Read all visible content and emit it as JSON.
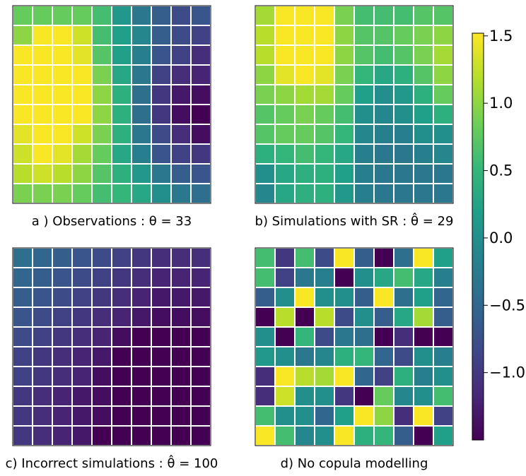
{
  "chart_data": {
    "type": "heatmap",
    "colormap": "viridis",
    "grid": false,
    "colorbar": {
      "range": [
        -1.5,
        1.52
      ],
      "ticks": [
        -1.0,
        -0.5,
        0.0,
        0.5,
        1.0,
        1.5
      ],
      "tick_labels": [
        "−1.0",
        "−0.5",
        "0.0",
        "0.5",
        "1.0",
        "1.5"
      ],
      "placement": "right"
    },
    "panels": [
      {
        "id": "a",
        "caption": "a ) Observations : θ = 33",
        "rows": [
          [
            0.8,
            0.8,
            0.8,
            0.8,
            0.6,
            0.1,
            -0.3,
            -0.6,
            -0.8,
            -0.7
          ],
          [
            1.0,
            1.5,
            1.5,
            1.3,
            0.6,
            0.2,
            -0.1,
            -0.6,
            -0.8,
            -0.9
          ],
          [
            1.5,
            1.5,
            1.5,
            1.4,
            0.7,
            0.2,
            -0.2,
            -0.7,
            -0.9,
            -1.1
          ],
          [
            1.5,
            1.5,
            1.5,
            1.5,
            0.9,
            0.3,
            -0.3,
            -0.9,
            -1.1,
            -1.2
          ],
          [
            1.5,
            1.5,
            1.5,
            1.5,
            1.0,
            0.4,
            -0.4,
            -1.0,
            -1.3,
            -1.4
          ],
          [
            1.5,
            1.5,
            1.5,
            1.5,
            1.0,
            0.4,
            -0.4,
            -1.0,
            -1.4,
            -1.5
          ],
          [
            1.4,
            1.5,
            1.5,
            1.3,
            0.9,
            0.4,
            -0.3,
            -0.8,
            -1.1,
            -1.4
          ],
          [
            1.3,
            1.5,
            1.4,
            1.1,
            0.8,
            0.3,
            -0.2,
            -0.7,
            -0.9,
            -1.0
          ],
          [
            1.2,
            1.3,
            1.2,
            1.0,
            0.7,
            0.4,
            0.1,
            -0.3,
            -0.6,
            -0.7
          ],
          [
            0.9,
            0.9,
            0.9,
            0.8,
            0.6,
            0.5,
            0.3,
            0.0,
            -0.3,
            -0.4
          ]
        ]
      },
      {
        "id": "b",
        "caption": "b) Simulations with SR : θ̂ = 29",
        "rows": [
          [
            1.1,
            1.5,
            1.5,
            1.5,
            0.9,
            0.6,
            0.6,
            0.6,
            0.7,
            0.7
          ],
          [
            1.2,
            1.5,
            1.5,
            1.5,
            1.0,
            0.7,
            0.7,
            0.8,
            0.9,
            1.0
          ],
          [
            1.2,
            1.5,
            1.5,
            1.5,
            1.0,
            0.7,
            0.6,
            0.7,
            0.9,
            1.1
          ],
          [
            1.0,
            1.4,
            1.5,
            1.4,
            0.9,
            0.5,
            0.3,
            0.4,
            0.7,
            1.0
          ],
          [
            0.9,
            1.0,
            1.1,
            1.1,
            0.8,
            0.2,
            0.0,
            0.1,
            0.4,
            0.8
          ],
          [
            0.7,
            0.8,
            0.9,
            0.8,
            0.6,
            0.0,
            -0.1,
            0.0,
            0.2,
            0.4
          ],
          [
            0.7,
            0.8,
            0.8,
            0.7,
            0.5,
            -0.1,
            -0.2,
            -0.2,
            0.0,
            0.0
          ],
          [
            0.4,
            0.5,
            0.6,
            0.5,
            0.3,
            -0.2,
            -0.3,
            -0.3,
            -0.2,
            -0.1
          ],
          [
            0.0,
            0.3,
            0.4,
            0.4,
            0.2,
            -0.2,
            -0.3,
            -0.3,
            -0.3,
            -0.3
          ],
          [
            -0.1,
            0.3,
            0.4,
            0.4,
            0.1,
            -0.2,
            -0.3,
            -0.3,
            -0.3,
            -0.3
          ]
        ]
      },
      {
        "id": "c",
        "caption": "c) Incorrect simulations : θ̂ = 100",
        "rows": [
          [
            -0.4,
            -0.5,
            -0.6,
            -0.7,
            -0.8,
            -0.9,
            -1.0,
            -1.1,
            -1.1,
            -1.1
          ],
          [
            -0.5,
            -0.6,
            -0.7,
            -0.8,
            -0.9,
            -1.0,
            -1.1,
            -1.2,
            -1.2,
            -1.2
          ],
          [
            -0.6,
            -0.7,
            -0.8,
            -0.9,
            -1.0,
            -1.1,
            -1.2,
            -1.3,
            -1.3,
            -1.3
          ],
          [
            -0.7,
            -0.8,
            -0.9,
            -1.0,
            -1.1,
            -1.2,
            -1.3,
            -1.4,
            -1.4,
            -1.4
          ],
          [
            -0.8,
            -0.9,
            -1.0,
            -1.1,
            -1.2,
            -1.4,
            -1.5,
            -1.5,
            -1.5,
            -1.5
          ],
          [
            -0.9,
            -1.0,
            -1.1,
            -1.2,
            -1.3,
            -1.5,
            -1.5,
            -1.5,
            -1.5,
            -1.5
          ],
          [
            -0.9,
            -1.0,
            -1.1,
            -1.2,
            -1.4,
            -1.5,
            -1.5,
            -1.5,
            -1.5,
            -1.5
          ],
          [
            -1.0,
            -1.1,
            -1.2,
            -1.3,
            -1.4,
            -1.5,
            -1.5,
            -1.5,
            -1.5,
            -1.5
          ],
          [
            -1.0,
            -1.1,
            -1.2,
            -1.3,
            -1.4,
            -1.5,
            -1.5,
            -1.5,
            -1.5,
            -1.5
          ],
          [
            -1.0,
            -1.1,
            -1.2,
            -1.3,
            -1.5,
            -1.5,
            -1.5,
            -1.5,
            -1.5,
            -1.5
          ]
        ]
      },
      {
        "id": "d",
        "caption": "d) No copula modelling",
        "rows": [
          [
            0.6,
            -1.0,
            0.6,
            -0.8,
            1.5,
            -0.6,
            -1.5,
            -0.4,
            1.5,
            0.2
          ],
          [
            0.6,
            -0.9,
            -0.3,
            -0.2,
            -1.5,
            0.0,
            0.3,
            0.6,
            0.3,
            -0.2
          ],
          [
            -0.6,
            0.0,
            1.5,
            0.0,
            0.0,
            -0.6,
            1.5,
            -0.4,
            0.2,
            -0.5
          ],
          [
            -1.5,
            1.2,
            -1.5,
            1.2,
            -0.8,
            0.0,
            -0.6,
            0.3,
            1.1,
            -0.6
          ],
          [
            0.0,
            -1.5,
            0.5,
            -0.8,
            -0.3,
            -0.4,
            -1.5,
            -1.1,
            -1.5,
            -1.5
          ],
          [
            0.1,
            0.0,
            -0.3,
            -0.1,
            0.4,
            0.5,
            -0.5,
            -0.8,
            0.0,
            -0.2
          ],
          [
            -1.1,
            1.5,
            1.2,
            1.1,
            1.5,
            -0.5,
            -0.9,
            0.4,
            -0.2,
            0.0
          ],
          [
            -1.1,
            1.3,
            0.0,
            0.0,
            -1.0,
            -1.5,
            0.8,
            -0.1,
            0.0,
            0.6
          ],
          [
            0.6,
            0.0,
            0.0,
            -0.5,
            0.2,
            1.5,
            1.0,
            -1.1,
            1.5,
            -0.9
          ],
          [
            1.5,
            0.6,
            -0.1,
            0.0,
            1.5,
            0.4,
            0.5,
            -0.6,
            -1.5,
            0.2
          ]
        ]
      }
    ]
  }
}
